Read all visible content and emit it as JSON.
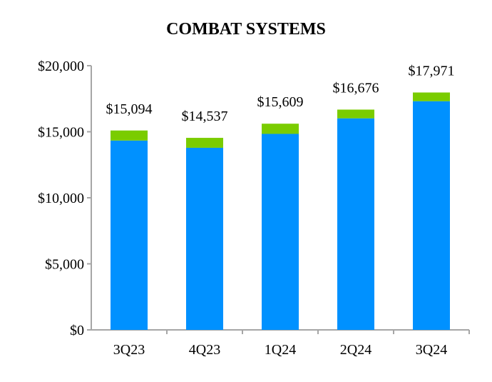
{
  "chart_data": {
    "type": "bar",
    "stacked": true,
    "title": "COMBAT SYSTEMS",
    "categories": [
      "3Q23",
      "4Q23",
      "1Q24",
      "2Q24",
      "3Q24"
    ],
    "series": [
      {
        "values": [
          14334,
          13787,
          14839,
          16016,
          17311
        ],
        "color": "#0091FF"
      },
      {
        "values": [
          760,
          750,
          770,
          660,
          660
        ],
        "color": "#7ACC00"
      }
    ],
    "totals": [
      15094,
      14537,
      15609,
      16676,
      17971
    ],
    "total_labels": [
      "$15,094",
      "$14,537",
      "$15,609",
      "$16,676",
      "$17,971"
    ],
    "yticks": [
      0,
      5000,
      10000,
      15000,
      20000
    ],
    "ytick_labels": [
      "$0",
      "$5,000",
      "$10,000",
      "$15,000",
      "$20,000"
    ],
    "ylim": [
      0,
      20000
    ],
    "xlabel": "",
    "ylabel": "",
    "grid": false,
    "axis_color": "#A6A6A6"
  }
}
